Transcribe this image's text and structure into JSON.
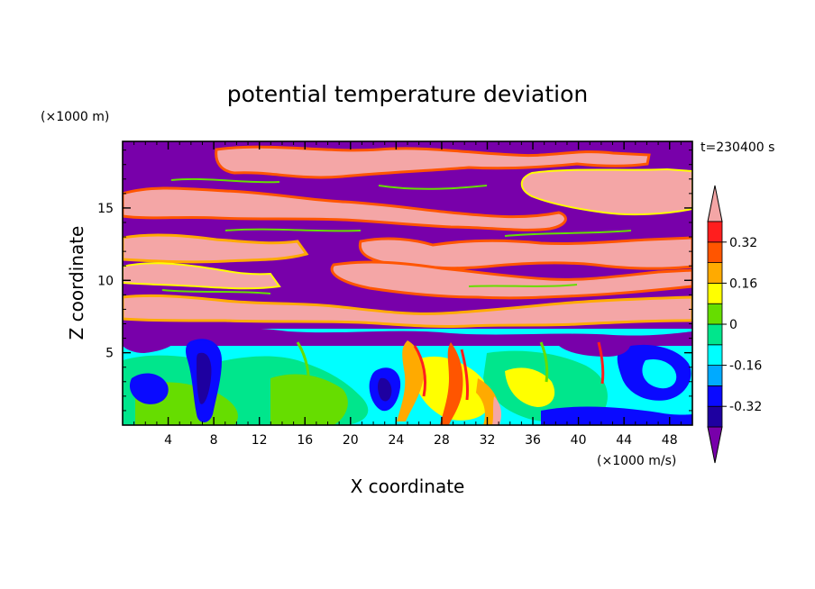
{
  "chart_data": {
    "type": "heatmap",
    "title": "potential temperature deviation",
    "time_label": "t=230400 s",
    "xlabel": "X coordinate",
    "ylabel": "Z coordinate",
    "x_unit": "(×1000 m/s)",
    "y_unit": "(×1000 m)",
    "xlim": [
      0,
      50
    ],
    "ylim": [
      0,
      19.6
    ],
    "x_ticks": [
      4,
      8,
      12,
      16,
      20,
      24,
      28,
      32,
      36,
      40,
      44,
      48
    ],
    "y_ticks": [
      5,
      10,
      15
    ],
    "colorbar": {
      "levels": [
        -0.4,
        -0.32,
        -0.24,
        -0.16,
        -0.08,
        0,
        0.08,
        0.16,
        0.24,
        0.32,
        0.4
      ],
      "labels": [
        "-0.32",
        "-0.16",
        "0",
        "0.16",
        "0.32"
      ],
      "label_values": [
        -0.32,
        -0.16,
        0,
        0.16,
        0.32
      ],
      "colors": [
        "#7800aa",
        "#1e00a0",
        "#0a0aff",
        "#00aaff",
        "#00ffff",
        "#00e68c",
        "#66dd00",
        "#ffff00",
        "#ffaa00",
        "#ff5500",
        "#ff1e1e",
        "#f4a6a6"
      ],
      "extend": "both"
    }
  }
}
